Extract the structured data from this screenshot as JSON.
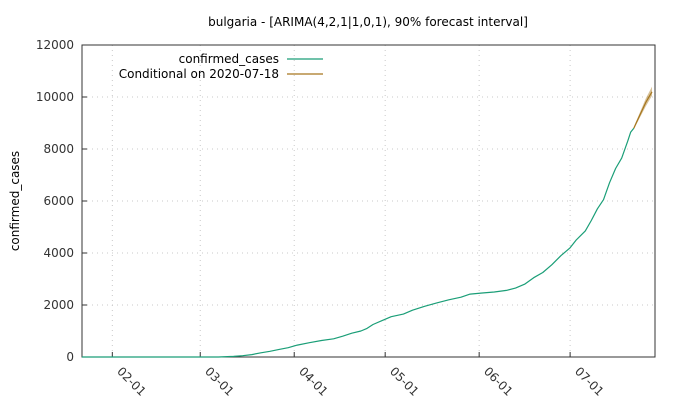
{
  "chart_data": {
    "type": "line",
    "title": "bulgaria -  [ARIMA(4,2,1|1,0,1), 90% forecast interval]",
    "xlabel": "",
    "ylabel": "confirmed_cases",
    "ylim": [
      0,
      12000
    ],
    "xlim": [
      "2020-01-22",
      "2020-07-29"
    ],
    "y_ticks": [
      0,
      2000,
      4000,
      6000,
      8000,
      10000,
      12000
    ],
    "x_ticks": [
      {
        "date": "2020-02-01",
        "label": "02-01"
      },
      {
        "date": "2020-03-01",
        "label": "03-01"
      },
      {
        "date": "2020-04-01",
        "label": "04-01"
      },
      {
        "date": "2020-05-01",
        "label": "05-01"
      },
      {
        "date": "2020-06-01",
        "label": "06-01"
      },
      {
        "date": "2020-07-01",
        "label": "07-01"
      }
    ],
    "grid": true,
    "legend_position": "top-left",
    "series": [
      {
        "name": "confirmed_cases",
        "color": "#1a9e77",
        "points": [
          [
            "2020-01-22",
            0
          ],
          [
            "2020-02-15",
            0
          ],
          [
            "2020-03-07",
            0
          ],
          [
            "2020-03-08",
            4
          ],
          [
            "2020-03-12",
            23
          ],
          [
            "2020-03-15",
            51
          ],
          [
            "2020-03-18",
            92
          ],
          [
            "2020-03-21",
            163
          ],
          [
            "2020-03-24",
            218
          ],
          [
            "2020-03-27",
            293
          ],
          [
            "2020-03-30",
            359
          ],
          [
            "2020-04-02",
            457
          ],
          [
            "2020-04-06",
            549
          ],
          [
            "2020-04-10",
            635
          ],
          [
            "2020-04-14",
            700
          ],
          [
            "2020-04-17",
            800
          ],
          [
            "2020-04-20",
            915
          ],
          [
            "2020-04-23",
            1000
          ],
          [
            "2020-04-25",
            1100
          ],
          [
            "2020-04-27",
            1250
          ],
          [
            "2020-04-30",
            1400
          ],
          [
            "2020-05-03",
            1550
          ],
          [
            "2020-05-07",
            1650
          ],
          [
            "2020-05-10",
            1800
          ],
          [
            "2020-05-14",
            1950
          ],
          [
            "2020-05-18",
            2080
          ],
          [
            "2020-05-22",
            2200
          ],
          [
            "2020-05-26",
            2300
          ],
          [
            "2020-05-29",
            2420
          ],
          [
            "2020-06-02",
            2460
          ],
          [
            "2020-06-06",
            2500
          ],
          [
            "2020-06-10",
            2560
          ],
          [
            "2020-06-13",
            2650
          ],
          [
            "2020-06-16",
            2800
          ],
          [
            "2020-06-19",
            3050
          ],
          [
            "2020-06-22",
            3250
          ],
          [
            "2020-06-25",
            3550
          ],
          [
            "2020-06-28",
            3900
          ],
          [
            "2020-07-01",
            4200
          ],
          [
            "2020-07-03",
            4500
          ],
          [
            "2020-07-06",
            4850
          ],
          [
            "2020-07-08",
            5250
          ],
          [
            "2020-07-10",
            5700
          ],
          [
            "2020-07-12",
            6050
          ],
          [
            "2020-07-14",
            6700
          ],
          [
            "2020-07-16",
            7250
          ],
          [
            "2020-07-18",
            7650
          ],
          [
            "2020-07-20",
            8300
          ],
          [
            "2020-07-21",
            8650
          ],
          [
            "2020-07-22",
            8800
          ]
        ]
      },
      {
        "name": "Conditional on 2020-07-18",
        "color": "#a6761d",
        "points": [
          [
            "2020-07-22",
            8800
          ],
          [
            "2020-07-24",
            9300
          ],
          [
            "2020-07-26",
            9800
          ],
          [
            "2020-07-28",
            10200
          ]
        ],
        "band_upper": [
          [
            "2020-07-22",
            8850
          ],
          [
            "2020-07-24",
            9400
          ],
          [
            "2020-07-26",
            9950
          ],
          [
            "2020-07-28",
            10400
          ]
        ],
        "band_lower": [
          [
            "2020-07-22",
            8750
          ],
          [
            "2020-07-24",
            9200
          ],
          [
            "2020-07-26",
            9650
          ],
          [
            "2020-07-28",
            10050
          ]
        ]
      }
    ]
  }
}
